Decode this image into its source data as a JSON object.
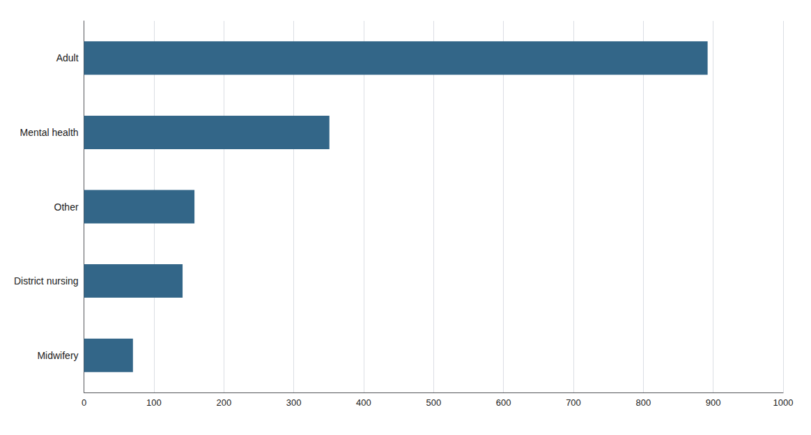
{
  "chart_data": {
    "type": "bar",
    "orientation": "horizontal",
    "categories": [
      "Adult",
      "Mental health",
      "Other",
      "District nursing",
      "Midwifery"
    ],
    "values": [
      892,
      351,
      158,
      141,
      70
    ],
    "color": "#336688",
    "xlim": [
      0,
      1000
    ],
    "xticks": [
      0,
      100,
      200,
      300,
      400,
      500,
      600,
      700,
      800,
      900,
      1000
    ],
    "grid": true
  }
}
